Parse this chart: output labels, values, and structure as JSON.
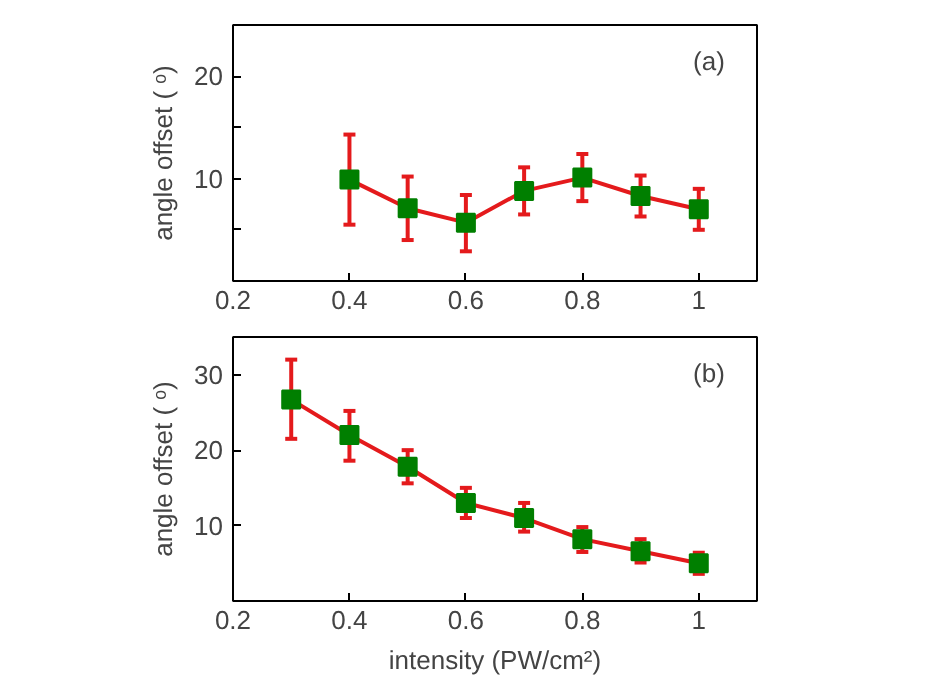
{
  "chart_data": [
    {
      "type": "line",
      "ylabel": "angle offset ( ᵒ)",
      "x": [
        0.4,
        0.5,
        0.6,
        0.7,
        0.8,
        0.9,
        1.0
      ],
      "series": [
        {
          "color": "#e41a1c",
          "colors": [
            "#007f00",
            "#007f00",
            "#007f00",
            "#007f00",
            "#007f00",
            "#007f00",
            "#007f00"
          ],
          "values": [
            9.9,
            7.1,
            5.7,
            8.8,
            10.1,
            8.3,
            7.0
          ],
          "errors": [
            [
              5.5,
              14.3
            ],
            [
              4.0,
              10.2
            ],
            [
              2.9,
              8.4
            ],
            [
              6.5,
              11.1
            ],
            [
              7.8,
              12.4
            ],
            [
              6.3,
              10.3
            ],
            [
              5.0,
              9.0
            ]
          ]
        }
      ],
      "marker": "square",
      "xlim": [
        0.2,
        1.1
      ],
      "xticks": [
        0.2,
        0.4,
        0.6,
        0.8,
        1
      ],
      "ylim": [
        0,
        25
      ],
      "yticks": [
        {
          "value": 5,
          "label": null
        },
        10,
        {
          "value": 15,
          "label": null
        },
        20
      ],
      "annotations": [
        "(a)"
      ],
      "grid": false
    },
    {
      "type": "line",
      "ylabel": "angle offset ( ᵒ)",
      "xlabel": "intensity (PW/cm²)",
      "x": [
        0.3,
        0.4,
        0.5,
        0.6,
        0.7,
        0.8,
        0.9,
        1.0
      ],
      "series": [
        {
          "color": "#e41a1c",
          "colors": [
            "#007f00",
            "#007f00",
            "#007f00",
            "#007f00",
            "#007f00",
            "#007f00",
            "#007f00",
            "#007f00"
          ],
          "values": [
            26.7,
            22.0,
            17.8,
            13.0,
            11.0,
            8.2,
            6.6,
            5.0
          ],
          "errors": [
            [
              21.5,
              32.0
            ],
            [
              18.6,
              25.2
            ],
            [
              15.6,
              20.0
            ],
            [
              11.0,
              15.0
            ],
            [
              9.2,
              13.0
            ],
            [
              6.5,
              9.8
            ],
            [
              5.1,
              8.2
            ],
            [
              3.6,
              6.4
            ]
          ]
        }
      ],
      "marker": "square",
      "xlim": [
        0.2,
        1.1
      ],
      "xticks": [
        0.2,
        0.4,
        0.6,
        0.8,
        1
      ],
      "ylim": [
        0,
        35
      ],
      "yticks": [
        10,
        20,
        30
      ],
      "annotations": [
        "(b)"
      ],
      "grid": false
    }
  ]
}
